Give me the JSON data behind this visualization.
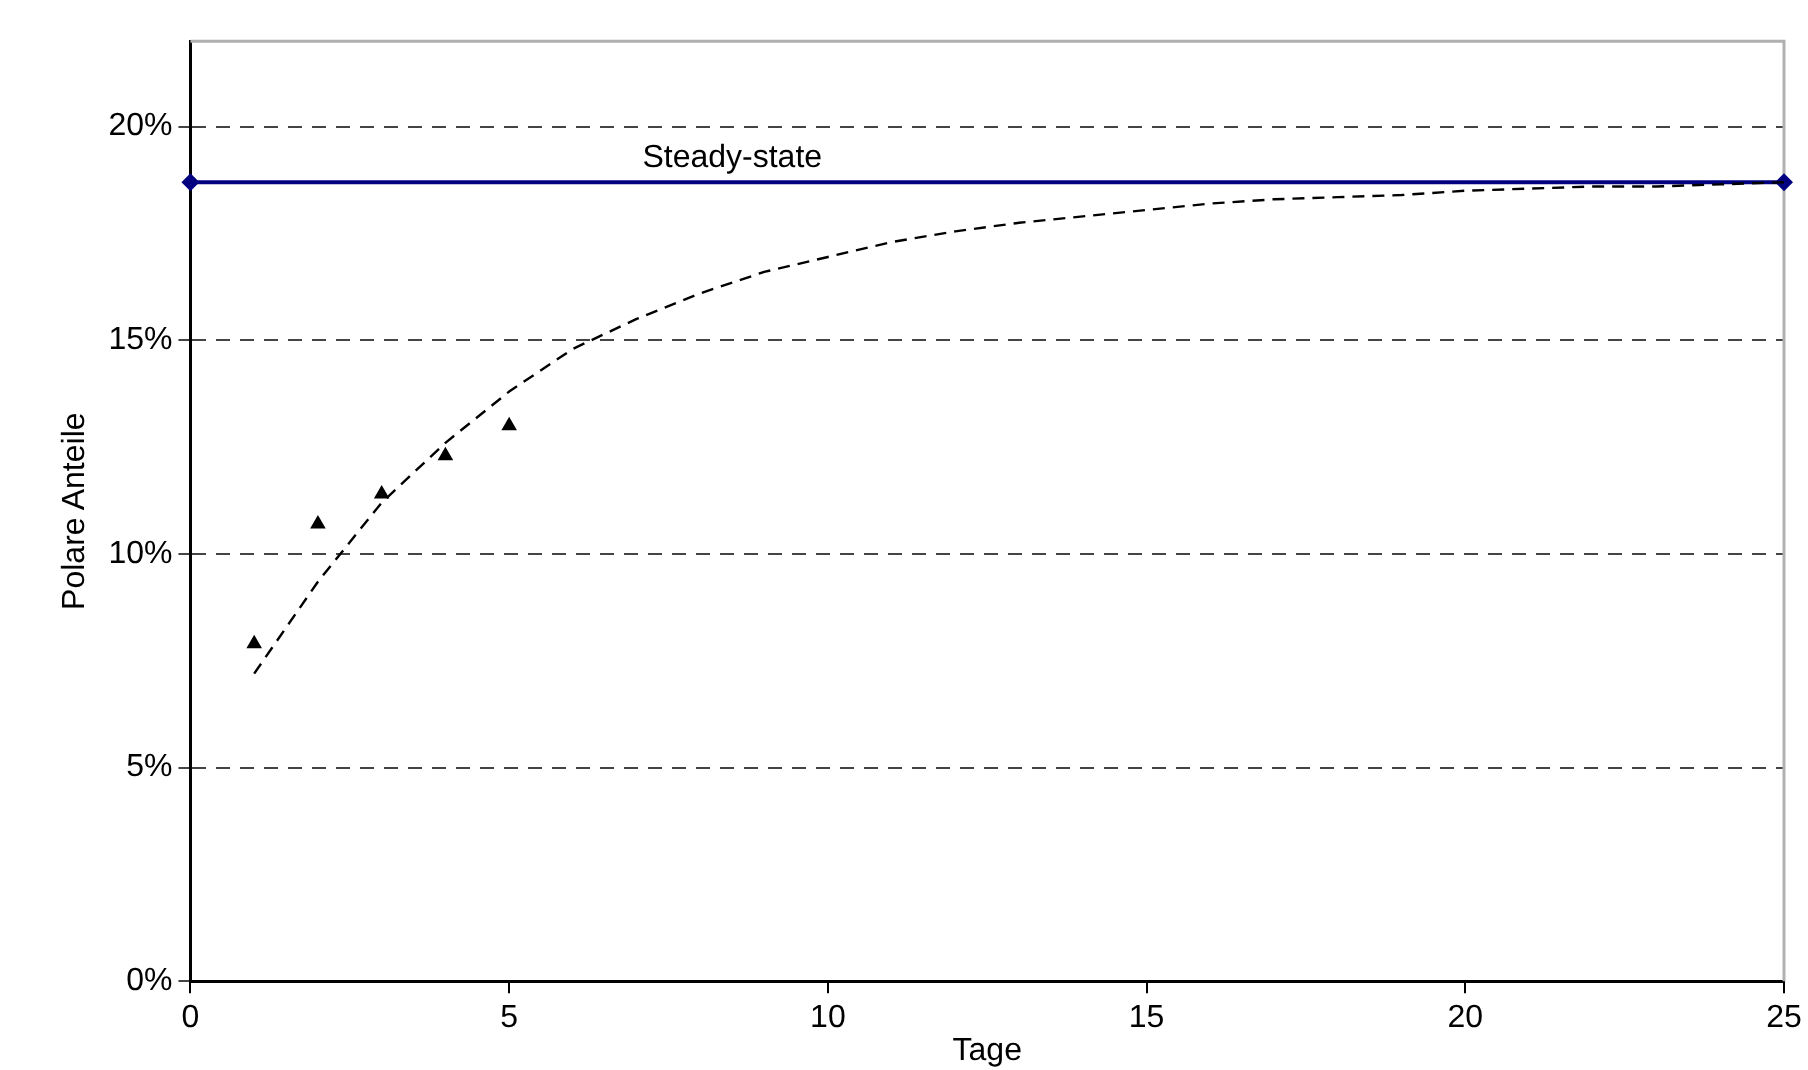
{
  "chart_data": {
    "type": "line",
    "xlabel": "Tage",
    "ylabel": "Polare Anteile",
    "xlim": [
      0,
      25
    ],
    "xticks": [
      0,
      5,
      10,
      15,
      20,
      25
    ],
    "ylim": [
      0,
      22
    ],
    "yticks": [
      {
        "value": 0,
        "label": "0%"
      },
      {
        "value": 5,
        "label": "5%"
      },
      {
        "value": 10,
        "label": "10%"
      },
      {
        "value": 15,
        "label": "15%"
      },
      {
        "value": 20,
        "label": "20%"
      }
    ],
    "grid": "y",
    "legend": false,
    "series": [
      {
        "type": "scatter",
        "color": "#000000",
        "marker": "triangle",
        "x": [
          1,
          2,
          3,
          4,
          5
        ],
        "values": [
          7.9,
          10.7,
          11.4,
          12.3,
          13.0
        ]
      },
      {
        "type": "line",
        "color": "#000000",
        "marker": "none",
        "line_style": "dashed",
        "x": [
          1,
          2,
          3,
          4,
          5,
          6,
          7,
          8,
          9,
          10,
          11,
          12,
          13,
          14,
          15,
          16,
          17,
          18,
          19,
          20,
          21,
          22,
          23,
          24,
          25
        ],
        "values": [
          7.2,
          9.35,
          11.2,
          12.6,
          13.8,
          14.8,
          15.5,
          16.1,
          16.6,
          16.95,
          17.3,
          17.55,
          17.75,
          17.9,
          18.05,
          18.2,
          18.3,
          18.35,
          18.4,
          18.5,
          18.55,
          18.6,
          18.6,
          18.65,
          18.7
        ]
      },
      {
        "type": "line",
        "name": "Steady-state",
        "color": "#000080",
        "marker": "diamond",
        "line_style": "solid",
        "x": [
          0,
          25
        ],
        "values": [
          18.7,
          18.7
        ]
      }
    ]
  }
}
